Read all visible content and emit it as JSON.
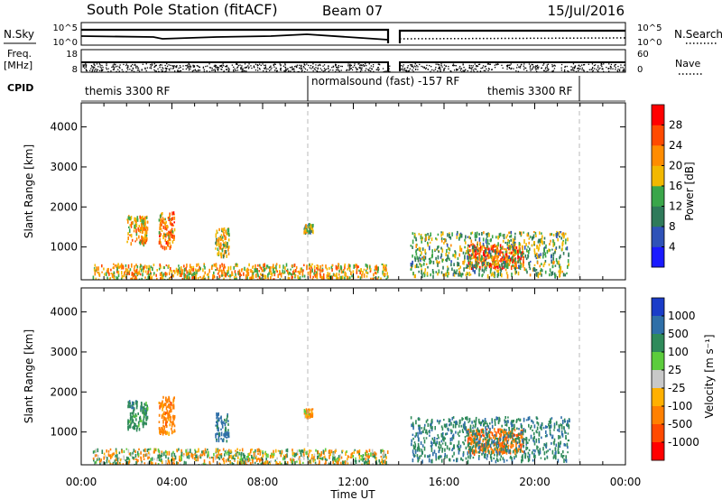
{
  "header": {
    "station": "South Pole Station (fitACF)",
    "beam": "Beam 07",
    "date": "15/Jul/2016"
  },
  "left_labels": {
    "nsky": "N.Sky",
    "freq": "Freq.",
    "freq_unit": "[MHz]",
    "cpid": "CPID"
  },
  "right_labels": {
    "nsearch": "N.Search",
    "nave": "Nave"
  },
  "ticks": {
    "nsky_left": [
      "10^5",
      "10^0"
    ],
    "nsky_right": [
      "10^5",
      "10^0"
    ],
    "freq_left": [
      "18",
      "8"
    ],
    "nave_right": [
      "60",
      "0"
    ],
    "range": [
      "1000",
      "2000",
      "3000",
      "4000"
    ],
    "time": [
      "00:00",
      "04:00",
      "08:00",
      "12:00",
      "16:00",
      "20:00",
      "00:00"
    ]
  },
  "cpid_segments": [
    "themis 3300 RF",
    "normalsound (fast) -157 RF",
    "themis 3300 RF"
  ],
  "axis_labels": {
    "y": "Slant Range [km]",
    "x": "Time UT",
    "power_cb": "Power [dB]",
    "velocity_cb": "Velocity [m s⁻¹]"
  },
  "colorbars": {
    "power": {
      "ticks": [
        "4",
        "8",
        "12",
        "16",
        "20",
        "24",
        "28"
      ],
      "colors": [
        "#1a1aff",
        "#2f52b8",
        "#2f7a5a",
        "#3aa64a",
        "#f2b800",
        "#ff8c00",
        "#ff4a00",
        "#ff0000"
      ]
    },
    "velocity": {
      "ticks": [
        "1000",
        "500",
        "100",
        "25",
        "-25",
        "-100",
        "-500",
        "-1000"
      ],
      "colors": [
        "#1a3cc8",
        "#2f6fa8",
        "#2f8a5a",
        "#5ccc3c",
        "#c8c8c8",
        "#ffb000",
        "#ff8000",
        "#ff4a00",
        "#ff0000"
      ]
    }
  },
  "chart_data": [
    {
      "type": "heatmap",
      "title": "Power",
      "ylabel": "Slant Range [km]",
      "colorbar_label": "Power [dB]",
      "x_ticks": [
        "00:00",
        "04:00",
        "08:00",
        "12:00",
        "16:00",
        "20:00",
        "00:00"
      ],
      "xlim_hours": [
        0,
        24
      ],
      "ylim_km": [
        180,
        4600
      ],
      "clim_db": [
        0,
        32
      ],
      "regions": [
        {
          "t": [
            2.0,
            2.9
          ],
          "r": [
            1100,
            1800
          ],
          "db": 20
        },
        {
          "t": [
            3.4,
            4.1
          ],
          "r": [
            1000,
            1900
          ],
          "db": 22
        },
        {
          "t": [
            5.9,
            6.5
          ],
          "r": [
            800,
            1500
          ],
          "db": 18
        },
        {
          "t": [
            9.8,
            10.2
          ],
          "r": [
            1400,
            1600
          ],
          "db": 14
        },
        {
          "t": [
            17.0,
            19.5
          ],
          "r": [
            500,
            1100
          ],
          "db": 26
        },
        {
          "t": [
            14.5,
            21.5
          ],
          "r": [
            300,
            1400
          ],
          "db": 14
        },
        {
          "t": [
            0.5,
            13.5
          ],
          "r": [
            200,
            600
          ],
          "db": 20
        }
      ]
    },
    {
      "type": "heatmap",
      "title": "Velocity",
      "ylabel": "Slant Range [km]",
      "xlabel": "Time UT",
      "colorbar_label": "Velocity [m s⁻¹]",
      "x_ticks": [
        "00:00",
        "04:00",
        "08:00",
        "12:00",
        "16:00",
        "20:00",
        "00:00"
      ],
      "xlim_hours": [
        0,
        24
      ],
      "ylim_km": [
        180,
        4600
      ],
      "color_levels": [
        1000,
        500,
        100,
        25,
        -25,
        -100,
        -500,
        -1000
      ],
      "regions": [
        {
          "t": [
            2.0,
            2.9
          ],
          "r": [
            1100,
            1800
          ],
          "v": 300
        },
        {
          "t": [
            3.4,
            4.1
          ],
          "r": [
            1000,
            1900
          ],
          "v": -300
        },
        {
          "t": [
            5.9,
            6.5
          ],
          "r": [
            800,
            1500
          ],
          "v": 600
        },
        {
          "t": [
            9.8,
            10.2
          ],
          "r": [
            1400,
            1600
          ],
          "v": -150
        },
        {
          "t": [
            17.0,
            19.5
          ],
          "r": [
            500,
            1100
          ],
          "v": -400
        },
        {
          "t": [
            14.5,
            21.5
          ],
          "r": [
            300,
            1400
          ],
          "v": 400
        },
        {
          "t": [
            0.5,
            13.5
          ],
          "r": [
            200,
            600
          ],
          "v": 0
        }
      ]
    }
  ]
}
